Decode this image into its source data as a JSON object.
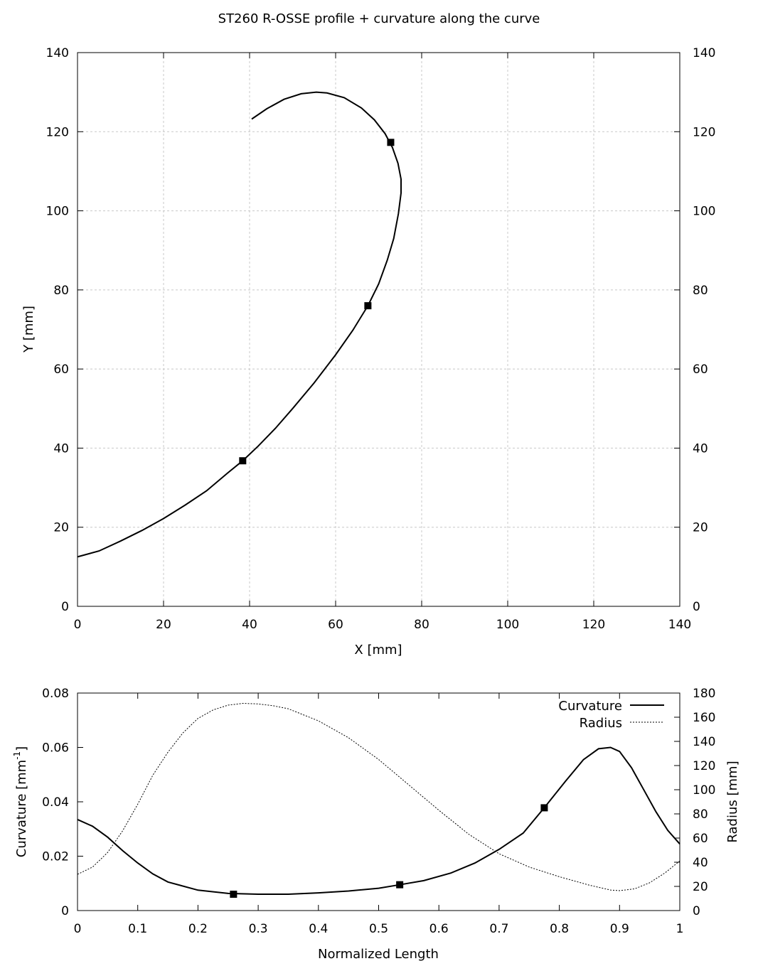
{
  "title": "ST260 R-OSSE profile + curvature along the curve",
  "chart_data": [
    {
      "type": "line",
      "xlabel": "X [mm]",
      "ylabel": "Y [mm]",
      "xlim": [
        0,
        140
      ],
      "ylim": [
        0,
        140
      ],
      "xticks": [
        0,
        20,
        40,
        60,
        80,
        100,
        120,
        140
      ],
      "yticks": [
        0,
        20,
        40,
        60,
        80,
        100,
        120,
        140
      ],
      "grid": true,
      "series": [
        {
          "style": "solid",
          "x": [
            0,
            5,
            10,
            15,
            20,
            25,
            30,
            35,
            38.4,
            42,
            46,
            50,
            55,
            60,
            64,
            67.5,
            70,
            72,
            73.5,
            74.6,
            75.2,
            75.2,
            74.5,
            73.2,
            71.5,
            69,
            66,
            62,
            58,
            55.5,
            52,
            48,
            44,
            40.5
          ],
          "y": [
            12.5,
            14,
            16.5,
            19.2,
            22.2,
            25.6,
            29.2,
            33.8,
            36.8,
            40.5,
            45,
            50,
            56.5,
            63.6,
            69.8,
            76,
            81.5,
            87.5,
            93,
            99.3,
            104.5,
            108,
            112,
            116,
            119.5,
            123,
            126,
            128.6,
            129.8,
            130,
            129.6,
            128.2,
            125.8,
            123.2
          ]
        }
      ],
      "markers": {
        "x": [
          38.4,
          67.5,
          72.8
        ],
        "y": [
          36.8,
          76,
          117.3
        ]
      }
    },
    {
      "type": "line",
      "xlabel": "Normalized Length",
      "ylabel": "Curvature [mm-1]",
      "ylabel_main": "Curvature [mm",
      "ylabel_sup": "-1",
      "ylabel_end": "]",
      "y2label": "Radius [mm]",
      "xlim": [
        0,
        1
      ],
      "ylim": [
        0,
        0.08
      ],
      "y2lim": [
        0,
        180
      ],
      "xticks": [
        0,
        0.1,
        0.2,
        0.3,
        0.4,
        0.5,
        0.6,
        0.7,
        0.8,
        0.9,
        1
      ],
      "xtick_labels": [
        "0",
        "0.1",
        "0.2",
        "0.3",
        "0.4",
        "0.5",
        "0.6",
        "0.7",
        "0.8",
        "0.9",
        "1"
      ],
      "yticks": [
        0,
        0.02,
        0.04,
        0.06,
        0.08
      ],
      "ytick_labels": [
        "0",
        "0.02",
        "0.04",
        "0.06",
        "0.08"
      ],
      "y2ticks": [
        0,
        20,
        40,
        60,
        80,
        100,
        120,
        140,
        160,
        180
      ],
      "legend_position": "top-right",
      "grid": false,
      "series": [
        {
          "name": "Curvature",
          "axis": "left",
          "style": "solid",
          "x": [
            0,
            0.025,
            0.05,
            0.075,
            0.1,
            0.125,
            0.15,
            0.2,
            0.25,
            0.3,
            0.35,
            0.4,
            0.45,
            0.5,
            0.535,
            0.575,
            0.62,
            0.66,
            0.7,
            0.74,
            0.775,
            0.81,
            0.84,
            0.865,
            0.885,
            0.9,
            0.92,
            0.94,
            0.96,
            0.98,
            1.0
          ],
          "values": [
            0.0335,
            0.031,
            0.027,
            0.022,
            0.0175,
            0.0135,
            0.0105,
            0.0075,
            0.0063,
            0.006,
            0.006,
            0.0065,
            0.0072,
            0.0082,
            0.0095,
            0.011,
            0.0138,
            0.0175,
            0.0225,
            0.0285,
            0.0378,
            0.0475,
            0.0555,
            0.0595,
            0.06,
            0.0585,
            0.0525,
            0.0445,
            0.0365,
            0.0295,
            0.0245
          ]
        },
        {
          "name": "Radius",
          "axis": "right",
          "style": "dotted",
          "x": [
            0,
            0.025,
            0.05,
            0.075,
            0.1,
            0.125,
            0.15,
            0.175,
            0.2,
            0.225,
            0.25,
            0.275,
            0.3,
            0.325,
            0.35,
            0.4,
            0.45,
            0.5,
            0.55,
            0.6,
            0.65,
            0.7,
            0.75,
            0.8,
            0.85,
            0.885,
            0.9,
            0.925,
            0.95,
            0.975,
            1.0
          ],
          "values": [
            30,
            36,
            48,
            66,
            88,
            112,
            131,
            147,
            159,
            166,
            170,
            171.5,
            171,
            169.5,
            167,
            157,
            143,
            125,
            104,
            83,
            63,
            47,
            36,
            28,
            21,
            17,
            16.5,
            18,
            23,
            31,
            41
          ]
        }
      ],
      "markers": {
        "x": [
          0.259,
          0.535,
          0.775
        ],
        "values": [
          0.006,
          0.0095,
          0.0378
        ]
      }
    }
  ]
}
